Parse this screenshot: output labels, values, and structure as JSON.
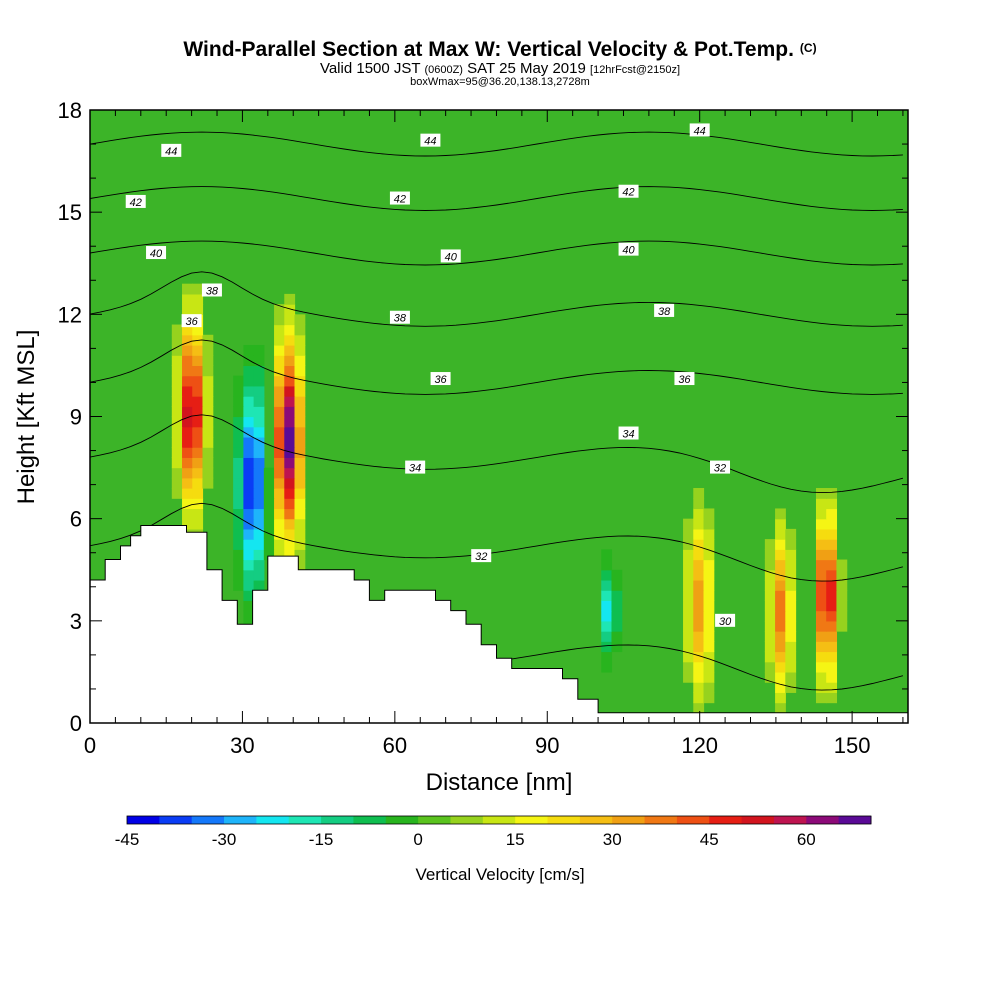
{
  "title": {
    "main": "Wind-Parallel Section at Max W: Vertical Velocity & Pot.Temp.",
    "mark": "(C)",
    "valid_prefix": "Valid 1500 JST",
    "valid_utc": "(0600Z)",
    "valid_date": "SAT 25 May 2019",
    "forecast": "[12hrFcst@2150z]",
    "box": "boxWmax=95@36.20,138.13,2728m"
  },
  "chart_data": {
    "type": "heatmap",
    "title": "Wind-Parallel Section at Max W: Vertical Velocity & Pot.Temp.",
    "xlabel": "Distance [nm]",
    "ylabel": "Height [Kft MSL]",
    "xlim": [
      0,
      161
    ],
    "ylim": [
      0,
      18
    ],
    "xticks": [
      0,
      30,
      60,
      90,
      120,
      150
    ],
    "yticks": [
      0,
      3,
      6,
      9,
      12,
      15,
      18
    ],
    "colorbar": {
      "label": "Vertical Velocity [cm/s]",
      "range": [
        -45,
        70
      ],
      "ticks": [
        -45,
        -30,
        -15,
        0,
        15,
        30,
        45,
        60
      ],
      "colors": [
        "#0000e6",
        "#0a3cf5",
        "#1478fa",
        "#1eb4fa",
        "#14e6f0",
        "#1ee6b4",
        "#14cd82",
        "#0fbe50",
        "#28b41e",
        "#5ac31e",
        "#96d21e",
        "#c8e614",
        "#f5f514",
        "#f5dc0f",
        "#f5be14",
        "#f0a014",
        "#f07814",
        "#ee5014",
        "#e61e14",
        "#d2141e",
        "#be1450",
        "#8c0a78",
        "#5a0a96"
      ]
    },
    "wind_max_cms": 95,
    "updrafts": [
      {
        "x": 20,
        "y_bottom": 6.0,
        "y_top": 12.2,
        "peak_w": 55
      },
      {
        "x": 39,
        "y_bottom": 5.0,
        "y_top": 11.6,
        "peak_w": 65
      },
      {
        "x": 120,
        "y_bottom": 0.5,
        "y_top": 6.5,
        "peak_w": 30
      },
      {
        "x": 136,
        "y_bottom": 0.6,
        "y_top": 5.8,
        "peak_w": 35
      },
      {
        "x": 145,
        "y_bottom": 1.2,
        "y_top": 6.3,
        "peak_w": 55
      }
    ],
    "downdrafts": [
      {
        "x": 32,
        "y_bottom": 3.5,
        "y_top": 10.5,
        "peak_w": -45
      },
      {
        "x": 102,
        "y_bottom": 2.0,
        "y_top": 4.6,
        "peak_w": -25
      }
    ],
    "terrain": [
      [
        0,
        4.2
      ],
      [
        3,
        4.2
      ],
      [
        3,
        4.8
      ],
      [
        6,
        4.8
      ],
      [
        6,
        5.2
      ],
      [
        8,
        5.2
      ],
      [
        8,
        5.5
      ],
      [
        10,
        5.5
      ],
      [
        10,
        5.8
      ],
      [
        19,
        5.8
      ],
      [
        19,
        5.6
      ],
      [
        23,
        5.6
      ],
      [
        23,
        4.5
      ],
      [
        26,
        4.5
      ],
      [
        26,
        3.6
      ],
      [
        29,
        3.6
      ],
      [
        29,
        2.9
      ],
      [
        32,
        2.9
      ],
      [
        32,
        3.9
      ],
      [
        35,
        3.9
      ],
      [
        35,
        4.9
      ],
      [
        41,
        4.9
      ],
      [
        41,
        4.5
      ],
      [
        52,
        4.5
      ],
      [
        52,
        4.2
      ],
      [
        55,
        4.2
      ],
      [
        55,
        3.6
      ],
      [
        58,
        3.6
      ],
      [
        58,
        3.9
      ],
      [
        68,
        3.9
      ],
      [
        68,
        3.6
      ],
      [
        71,
        3.6
      ],
      [
        71,
        3.3
      ],
      [
        74,
        3.3
      ],
      [
        74,
        2.9
      ],
      [
        77,
        2.9
      ],
      [
        77,
        2.3
      ],
      [
        80,
        2.3
      ],
      [
        80,
        1.9
      ],
      [
        83,
        1.9
      ],
      [
        83,
        1.6
      ],
      [
        93,
        1.6
      ],
      [
        93,
        1.3
      ],
      [
        96,
        1.3
      ],
      [
        96,
        0.7
      ],
      [
        100,
        0.7
      ],
      [
        100,
        0.3
      ],
      [
        161,
        0.3
      ]
    ],
    "theta_contours": [
      30,
      32,
      34,
      36,
      38,
      40,
      42,
      44
    ],
    "theta_labels": [
      {
        "text": "44",
        "x": 16,
        "y": 16.8
      },
      {
        "text": "44",
        "x": 67,
        "y": 17.1
      },
      {
        "text": "44",
        "x": 120,
        "y": 17.4
      },
      {
        "text": "42",
        "x": 9,
        "y": 15.3
      },
      {
        "text": "42",
        "x": 61,
        "y": 15.4
      },
      {
        "text": "42",
        "x": 106,
        "y": 15.6
      },
      {
        "text": "40",
        "x": 13,
        "y": 13.8
      },
      {
        "text": "40",
        "x": 71,
        "y": 13.7
      },
      {
        "text": "40",
        "x": 106,
        "y": 13.9
      },
      {
        "text": "38",
        "x": 24,
        "y": 12.7
      },
      {
        "text": "38",
        "x": 61,
        "y": 11.9
      },
      {
        "text": "38",
        "x": 113,
        "y": 12.1
      },
      {
        "text": "36",
        "x": 20,
        "y": 11.8
      },
      {
        "text": "36",
        "x": 69,
        "y": 10.1
      },
      {
        "text": "36",
        "x": 117,
        "y": 10.1
      },
      {
        "text": "34",
        "x": 64,
        "y": 7.5
      },
      {
        "text": "34",
        "x": 106,
        "y": 8.5
      },
      {
        "text": "32",
        "x": 77,
        "y": 4.9
      },
      {
        "text": "32",
        "x": 124,
        "y": 7.5
      },
      {
        "text": "30",
        "x": 125,
        "y": 3.0
      }
    ]
  }
}
